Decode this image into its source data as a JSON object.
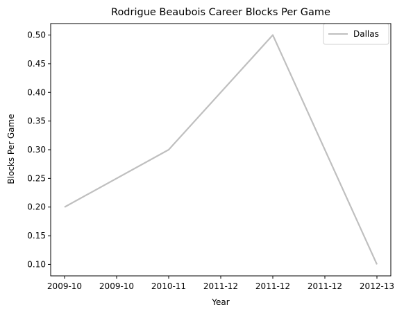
{
  "chart_data": {
    "type": "line",
    "title": "Rodrigue Beaubois Career Blocks Per Game",
    "xlabel": "Year",
    "ylabel": "Blocks Per Game",
    "x_tick_labels": [
      "2009-10",
      "2009-10",
      "2010-11",
      "2011-12",
      "2011-12",
      "2011-12",
      "2012-13"
    ],
    "y_ticks": [
      "0.10",
      "0.15",
      "0.20",
      "0.25",
      "0.30",
      "0.35",
      "0.40",
      "0.45",
      "0.50"
    ],
    "ylim": [
      0.08,
      0.52
    ],
    "grid": false,
    "legend_position": "top-right",
    "series": [
      {
        "name": "Dallas",
        "color": "#bfbfbf",
        "x": [
          "2009-10",
          "2010-11",
          "2011-12",
          "2012-13"
        ],
        "values": [
          0.2,
          0.3,
          0.5,
          0.1
        ]
      }
    ]
  }
}
